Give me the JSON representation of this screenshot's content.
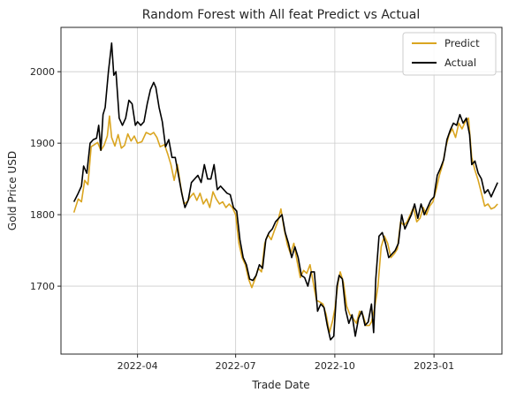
{
  "chart_data": {
    "type": "line",
    "title": "Random Forest with All feat Predict vs Actual",
    "xlabel": "Trade Date",
    "ylabel": "Gold Price USD",
    "xlim": [
      "2022-01-20",
      "2023-03-05"
    ],
    "ylim": [
      1605,
      2062
    ],
    "x_ticks": [
      "2022-04-01",
      "2022-07-01",
      "2022-10-01",
      "2023-01-01"
    ],
    "x_tick_labels": [
      "2022-04",
      "2022-07",
      "2022-10",
      "2023-01"
    ],
    "y_ticks": [
      1700,
      1800,
      1900,
      2000
    ],
    "y_tick_labels": [
      "1700",
      "1800",
      "1900",
      "2000"
    ],
    "grid": true,
    "legend": "top-right",
    "series": [
      {
        "name": "Predict",
        "color": "#daa520",
        "points": [
          [
            "2022-02-01",
            1803
          ],
          [
            "2022-02-05",
            1822
          ],
          [
            "2022-02-08",
            1818
          ],
          [
            "2022-02-11",
            1848
          ],
          [
            "2022-02-14",
            1842
          ],
          [
            "2022-02-17",
            1895
          ],
          [
            "2022-02-20",
            1898
          ],
          [
            "2022-02-23",
            1901
          ],
          [
            "2022-02-26",
            1890
          ],
          [
            "2022-03-01",
            1897
          ],
          [
            "2022-03-04",
            1910
          ],
          [
            "2022-03-06",
            1938
          ],
          [
            "2022-03-08",
            1908
          ],
          [
            "2022-03-11",
            1896
          ],
          [
            "2022-03-14",
            1912
          ],
          [
            "2022-03-17",
            1893
          ],
          [
            "2022-03-20",
            1897
          ],
          [
            "2022-03-23",
            1913
          ],
          [
            "2022-03-26",
            1903
          ],
          [
            "2022-03-29",
            1910
          ],
          [
            "2022-04-01",
            1900
          ],
          [
            "2022-04-05",
            1902
          ],
          [
            "2022-04-09",
            1915
          ],
          [
            "2022-04-13",
            1912
          ],
          [
            "2022-04-16",
            1915
          ],
          [
            "2022-04-19",
            1908
          ],
          [
            "2022-04-22",
            1895
          ],
          [
            "2022-04-26",
            1898
          ],
          [
            "2022-04-29",
            1885
          ],
          [
            "2022-05-02",
            1870
          ],
          [
            "2022-05-05",
            1848
          ],
          [
            "2022-05-08",
            1870
          ],
          [
            "2022-05-11",
            1840
          ],
          [
            "2022-05-14",
            1815
          ],
          [
            "2022-05-17",
            1818
          ],
          [
            "2022-05-20",
            1825
          ],
          [
            "2022-05-23",
            1830
          ],
          [
            "2022-05-26",
            1820
          ],
          [
            "2022-05-29",
            1830
          ],
          [
            "2022-06-01",
            1815
          ],
          [
            "2022-06-04",
            1822
          ],
          [
            "2022-06-07",
            1810
          ],
          [
            "2022-06-10",
            1832
          ],
          [
            "2022-06-13",
            1822
          ],
          [
            "2022-06-16",
            1815
          ],
          [
            "2022-06-19",
            1818
          ],
          [
            "2022-06-22",
            1810
          ],
          [
            "2022-06-25",
            1815
          ],
          [
            "2022-06-28",
            1810
          ],
          [
            "2022-07-01",
            1800
          ],
          [
            "2022-07-04",
            1760
          ],
          [
            "2022-07-07",
            1740
          ],
          [
            "2022-07-10",
            1730
          ],
          [
            "2022-07-13",
            1710
          ],
          [
            "2022-07-16",
            1698
          ],
          [
            "2022-07-19",
            1710
          ],
          [
            "2022-07-22",
            1725
          ],
          [
            "2022-07-25",
            1720
          ],
          [
            "2022-07-28",
            1760
          ],
          [
            "2022-07-31",
            1772
          ],
          [
            "2022-08-03",
            1765
          ],
          [
            "2022-08-06",
            1778
          ],
          [
            "2022-08-09",
            1790
          ],
          [
            "2022-08-12",
            1808
          ],
          [
            "2022-08-15",
            1780
          ],
          [
            "2022-08-18",
            1758
          ],
          [
            "2022-08-21",
            1745
          ],
          [
            "2022-08-24",
            1760
          ],
          [
            "2022-08-27",
            1735
          ],
          [
            "2022-08-30",
            1712
          ],
          [
            "2022-09-02",
            1722
          ],
          [
            "2022-09-05",
            1718
          ],
          [
            "2022-09-08",
            1730
          ],
          [
            "2022-09-11",
            1705
          ],
          [
            "2022-09-14",
            1680
          ],
          [
            "2022-09-17",
            1678
          ],
          [
            "2022-09-20",
            1675
          ],
          [
            "2022-09-23",
            1660
          ],
          [
            "2022-09-26",
            1635
          ],
          [
            "2022-09-29",
            1652
          ],
          [
            "2022-10-01",
            1668
          ],
          [
            "2022-10-04",
            1705
          ],
          [
            "2022-10-06",
            1720
          ],
          [
            "2022-10-09",
            1705
          ],
          [
            "2022-10-12",
            1672
          ],
          [
            "2022-10-15",
            1660
          ],
          [
            "2022-10-18",
            1655
          ],
          [
            "2022-10-21",
            1648
          ],
          [
            "2022-10-24",
            1665
          ],
          [
            "2022-10-27",
            1660
          ],
          [
            "2022-10-30",
            1645
          ],
          [
            "2022-11-02",
            1645
          ],
          [
            "2022-11-04",
            1650
          ],
          [
            "2022-11-07",
            1670
          ],
          [
            "2022-11-10",
            1700
          ],
          [
            "2022-11-13",
            1755
          ],
          [
            "2022-11-16",
            1770
          ],
          [
            "2022-11-19",
            1760
          ],
          [
            "2022-11-22",
            1740
          ],
          [
            "2022-11-25",
            1745
          ],
          [
            "2022-11-28",
            1752
          ],
          [
            "2022-12-01",
            1790
          ],
          [
            "2022-12-04",
            1785
          ],
          [
            "2022-12-07",
            1790
          ],
          [
            "2022-12-10",
            1800
          ],
          [
            "2022-12-13",
            1810
          ],
          [
            "2022-12-16",
            1790
          ],
          [
            "2022-12-19",
            1795
          ],
          [
            "2022-12-22",
            1810
          ],
          [
            "2022-12-25",
            1800
          ],
          [
            "2022-12-28",
            1812
          ],
          [
            "2022-12-31",
            1818
          ],
          [
            "2023-01-03",
            1835
          ],
          [
            "2023-01-06",
            1855
          ],
          [
            "2023-01-09",
            1870
          ],
          [
            "2023-01-12",
            1895
          ],
          [
            "2023-01-15",
            1912
          ],
          [
            "2023-01-18",
            1920
          ],
          [
            "2023-01-21",
            1908
          ],
          [
            "2023-01-24",
            1928
          ],
          [
            "2023-01-27",
            1920
          ],
          [
            "2023-01-30",
            1930
          ],
          [
            "2023-02-02",
            1935
          ],
          [
            "2023-02-05",
            1880
          ],
          [
            "2023-02-08",
            1862
          ],
          [
            "2023-02-11",
            1848
          ],
          [
            "2023-02-14",
            1830
          ],
          [
            "2023-02-17",
            1812
          ],
          [
            "2023-02-20",
            1815
          ],
          [
            "2023-02-23",
            1808
          ],
          [
            "2023-02-26",
            1810
          ],
          [
            "2023-03-01",
            1815
          ]
        ]
      },
      {
        "name": "Actual",
        "color": "#000000",
        "points": [
          [
            "2022-02-01",
            1818
          ],
          [
            "2022-02-05",
            1830
          ],
          [
            "2022-02-08",
            1840
          ],
          [
            "2022-02-10",
            1868
          ],
          [
            "2022-02-13",
            1858
          ],
          [
            "2022-02-16",
            1900
          ],
          [
            "2022-02-19",
            1905
          ],
          [
            "2022-02-22",
            1907
          ],
          [
            "2022-02-24",
            1925
          ],
          [
            "2022-02-26",
            1890
          ],
          [
            "2022-02-28",
            1940
          ],
          [
            "2022-03-02",
            1950
          ],
          [
            "2022-03-05",
            2000
          ],
          [
            "2022-03-08",
            2040
          ],
          [
            "2022-03-10",
            1995
          ],
          [
            "2022-03-12",
            2000
          ],
          [
            "2022-03-15",
            1935
          ],
          [
            "2022-03-18",
            1925
          ],
          [
            "2022-03-21",
            1935
          ],
          [
            "2022-03-24",
            1960
          ],
          [
            "2022-03-27",
            1955
          ],
          [
            "2022-03-30",
            1925
          ],
          [
            "2022-04-01",
            1930
          ],
          [
            "2022-04-04",
            1925
          ],
          [
            "2022-04-07",
            1930
          ],
          [
            "2022-04-10",
            1955
          ],
          [
            "2022-04-13",
            1975
          ],
          [
            "2022-04-16",
            1985
          ],
          [
            "2022-04-18",
            1978
          ],
          [
            "2022-04-21",
            1950
          ],
          [
            "2022-04-24",
            1930
          ],
          [
            "2022-04-27",
            1895
          ],
          [
            "2022-04-30",
            1905
          ],
          [
            "2022-05-03",
            1880
          ],
          [
            "2022-05-06",
            1880
          ],
          [
            "2022-05-09",
            1855
          ],
          [
            "2022-05-12",
            1830
          ],
          [
            "2022-05-15",
            1810
          ],
          [
            "2022-05-18",
            1820
          ],
          [
            "2022-05-21",
            1845
          ],
          [
            "2022-05-24",
            1850
          ],
          [
            "2022-05-27",
            1855
          ],
          [
            "2022-05-30",
            1845
          ],
          [
            "2022-06-02",
            1870
          ],
          [
            "2022-06-05",
            1850
          ],
          [
            "2022-06-08",
            1850
          ],
          [
            "2022-06-11",
            1870
          ],
          [
            "2022-06-14",
            1835
          ],
          [
            "2022-06-17",
            1840
          ],
          [
            "2022-06-20",
            1835
          ],
          [
            "2022-06-23",
            1830
          ],
          [
            "2022-06-26",
            1828
          ],
          [
            "2022-06-29",
            1810
          ],
          [
            "2022-07-02",
            1805
          ],
          [
            "2022-07-05",
            1765
          ],
          [
            "2022-07-08",
            1740
          ],
          [
            "2022-07-11",
            1730
          ],
          [
            "2022-07-14",
            1710
          ],
          [
            "2022-07-17",
            1708
          ],
          [
            "2022-07-20",
            1715
          ],
          [
            "2022-07-23",
            1730
          ],
          [
            "2022-07-26",
            1725
          ],
          [
            "2022-07-29",
            1765
          ],
          [
            "2022-08-01",
            1775
          ],
          [
            "2022-08-04",
            1780
          ],
          [
            "2022-08-07",
            1790
          ],
          [
            "2022-08-10",
            1795
          ],
          [
            "2022-08-13",
            1800
          ],
          [
            "2022-08-16",
            1775
          ],
          [
            "2022-08-19",
            1760
          ],
          [
            "2022-08-22",
            1740
          ],
          [
            "2022-08-25",
            1755
          ],
          [
            "2022-08-28",
            1740
          ],
          [
            "2022-08-31",
            1715
          ],
          [
            "2022-09-03",
            1712
          ],
          [
            "2022-09-06",
            1700
          ],
          [
            "2022-09-09",
            1720
          ],
          [
            "2022-09-12",
            1720
          ],
          [
            "2022-09-15",
            1665
          ],
          [
            "2022-09-18",
            1675
          ],
          [
            "2022-09-21",
            1670
          ],
          [
            "2022-09-24",
            1645
          ],
          [
            "2022-09-27",
            1625
          ],
          [
            "2022-09-30",
            1630
          ],
          [
            "2022-10-03",
            1700
          ],
          [
            "2022-10-05",
            1715
          ],
          [
            "2022-10-08",
            1710
          ],
          [
            "2022-10-11",
            1667
          ],
          [
            "2022-10-14",
            1648
          ],
          [
            "2022-10-17",
            1660
          ],
          [
            "2022-10-20",
            1630
          ],
          [
            "2022-10-23",
            1655
          ],
          [
            "2022-10-26",
            1665
          ],
          [
            "2022-10-29",
            1645
          ],
          [
            "2022-11-01",
            1650
          ],
          [
            "2022-11-04",
            1675
          ],
          [
            "2022-11-06",
            1635
          ],
          [
            "2022-11-08",
            1710
          ],
          [
            "2022-11-11",
            1770
          ],
          [
            "2022-11-14",
            1775
          ],
          [
            "2022-11-17",
            1760
          ],
          [
            "2022-11-20",
            1740
          ],
          [
            "2022-11-23",
            1745
          ],
          [
            "2022-11-26",
            1750
          ],
          [
            "2022-11-29",
            1760
          ],
          [
            "2022-12-02",
            1800
          ],
          [
            "2022-12-05",
            1780
          ],
          [
            "2022-12-08",
            1790
          ],
          [
            "2022-12-11",
            1800
          ],
          [
            "2022-12-14",
            1815
          ],
          [
            "2022-12-17",
            1795
          ],
          [
            "2022-12-20",
            1815
          ],
          [
            "2022-12-23",
            1800
          ],
          [
            "2022-12-26",
            1810
          ],
          [
            "2022-12-29",
            1820
          ],
          [
            "2023-01-01",
            1825
          ],
          [
            "2023-01-04",
            1855
          ],
          [
            "2023-01-07",
            1865
          ],
          [
            "2023-01-10",
            1877
          ],
          [
            "2023-01-13",
            1905
          ],
          [
            "2023-01-16",
            1918
          ],
          [
            "2023-01-19",
            1928
          ],
          [
            "2023-01-22",
            1925
          ],
          [
            "2023-01-25",
            1940
          ],
          [
            "2023-01-28",
            1928
          ],
          [
            "2023-01-31",
            1935
          ],
          [
            "2023-02-03",
            1912
          ],
          [
            "2023-02-05",
            1870
          ],
          [
            "2023-02-08",
            1875
          ],
          [
            "2023-02-11",
            1858
          ],
          [
            "2023-02-14",
            1850
          ],
          [
            "2023-02-17",
            1830
          ],
          [
            "2023-02-20",
            1835
          ],
          [
            "2023-02-23",
            1825
          ],
          [
            "2023-02-26",
            1835
          ],
          [
            "2023-03-01",
            1845
          ]
        ]
      }
    ]
  }
}
